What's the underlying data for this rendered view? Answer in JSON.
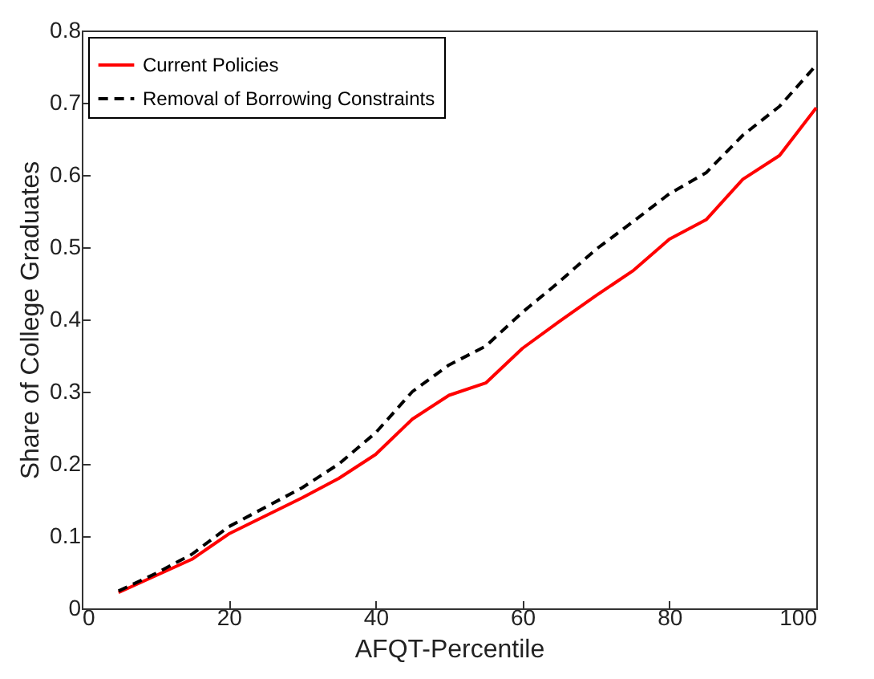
{
  "chart_data": {
    "type": "line",
    "xlabel": "AFQT-Percentile",
    "ylabel": "Share of  College Graduates",
    "x": [
      5,
      10,
      15,
      20,
      25,
      30,
      35,
      40,
      45,
      50,
      55,
      60,
      65,
      70,
      75,
      80,
      85,
      90,
      95,
      100
    ],
    "series": [
      {
        "name": "Current Policies",
        "color": "#ff0000",
        "line_style": "solid",
        "values": [
          0.022,
          0.045,
          0.068,
          0.103,
          0.128,
          0.153,
          0.18,
          0.213,
          0.262,
          0.295,
          0.312,
          0.36,
          0.397,
          0.433,
          0.467,
          0.511,
          0.538,
          0.594,
          0.627,
          0.693
        ]
      },
      {
        "name": "Removal of Borrowing Constraints",
        "color": "#000000",
        "line_style": "dashed",
        "values": [
          0.024,
          0.048,
          0.075,
          0.113,
          0.14,
          0.167,
          0.2,
          0.243,
          0.3,
          0.337,
          0.363,
          0.41,
          0.452,
          0.497,
          0.535,
          0.574,
          0.603,
          0.655,
          0.695,
          0.752
        ]
      }
    ],
    "xlim": [
      0,
      100
    ],
    "xticks": [
      0,
      20,
      40,
      60,
      80,
      100
    ],
    "ylim": [
      0,
      0.8
    ],
    "yticks": [
      0,
      0.1,
      0.2,
      0.3,
      0.4,
      0.5,
      0.6,
      0.7,
      0.8
    ],
    "grid": false,
    "legend": "top left",
    "marker": "none"
  }
}
